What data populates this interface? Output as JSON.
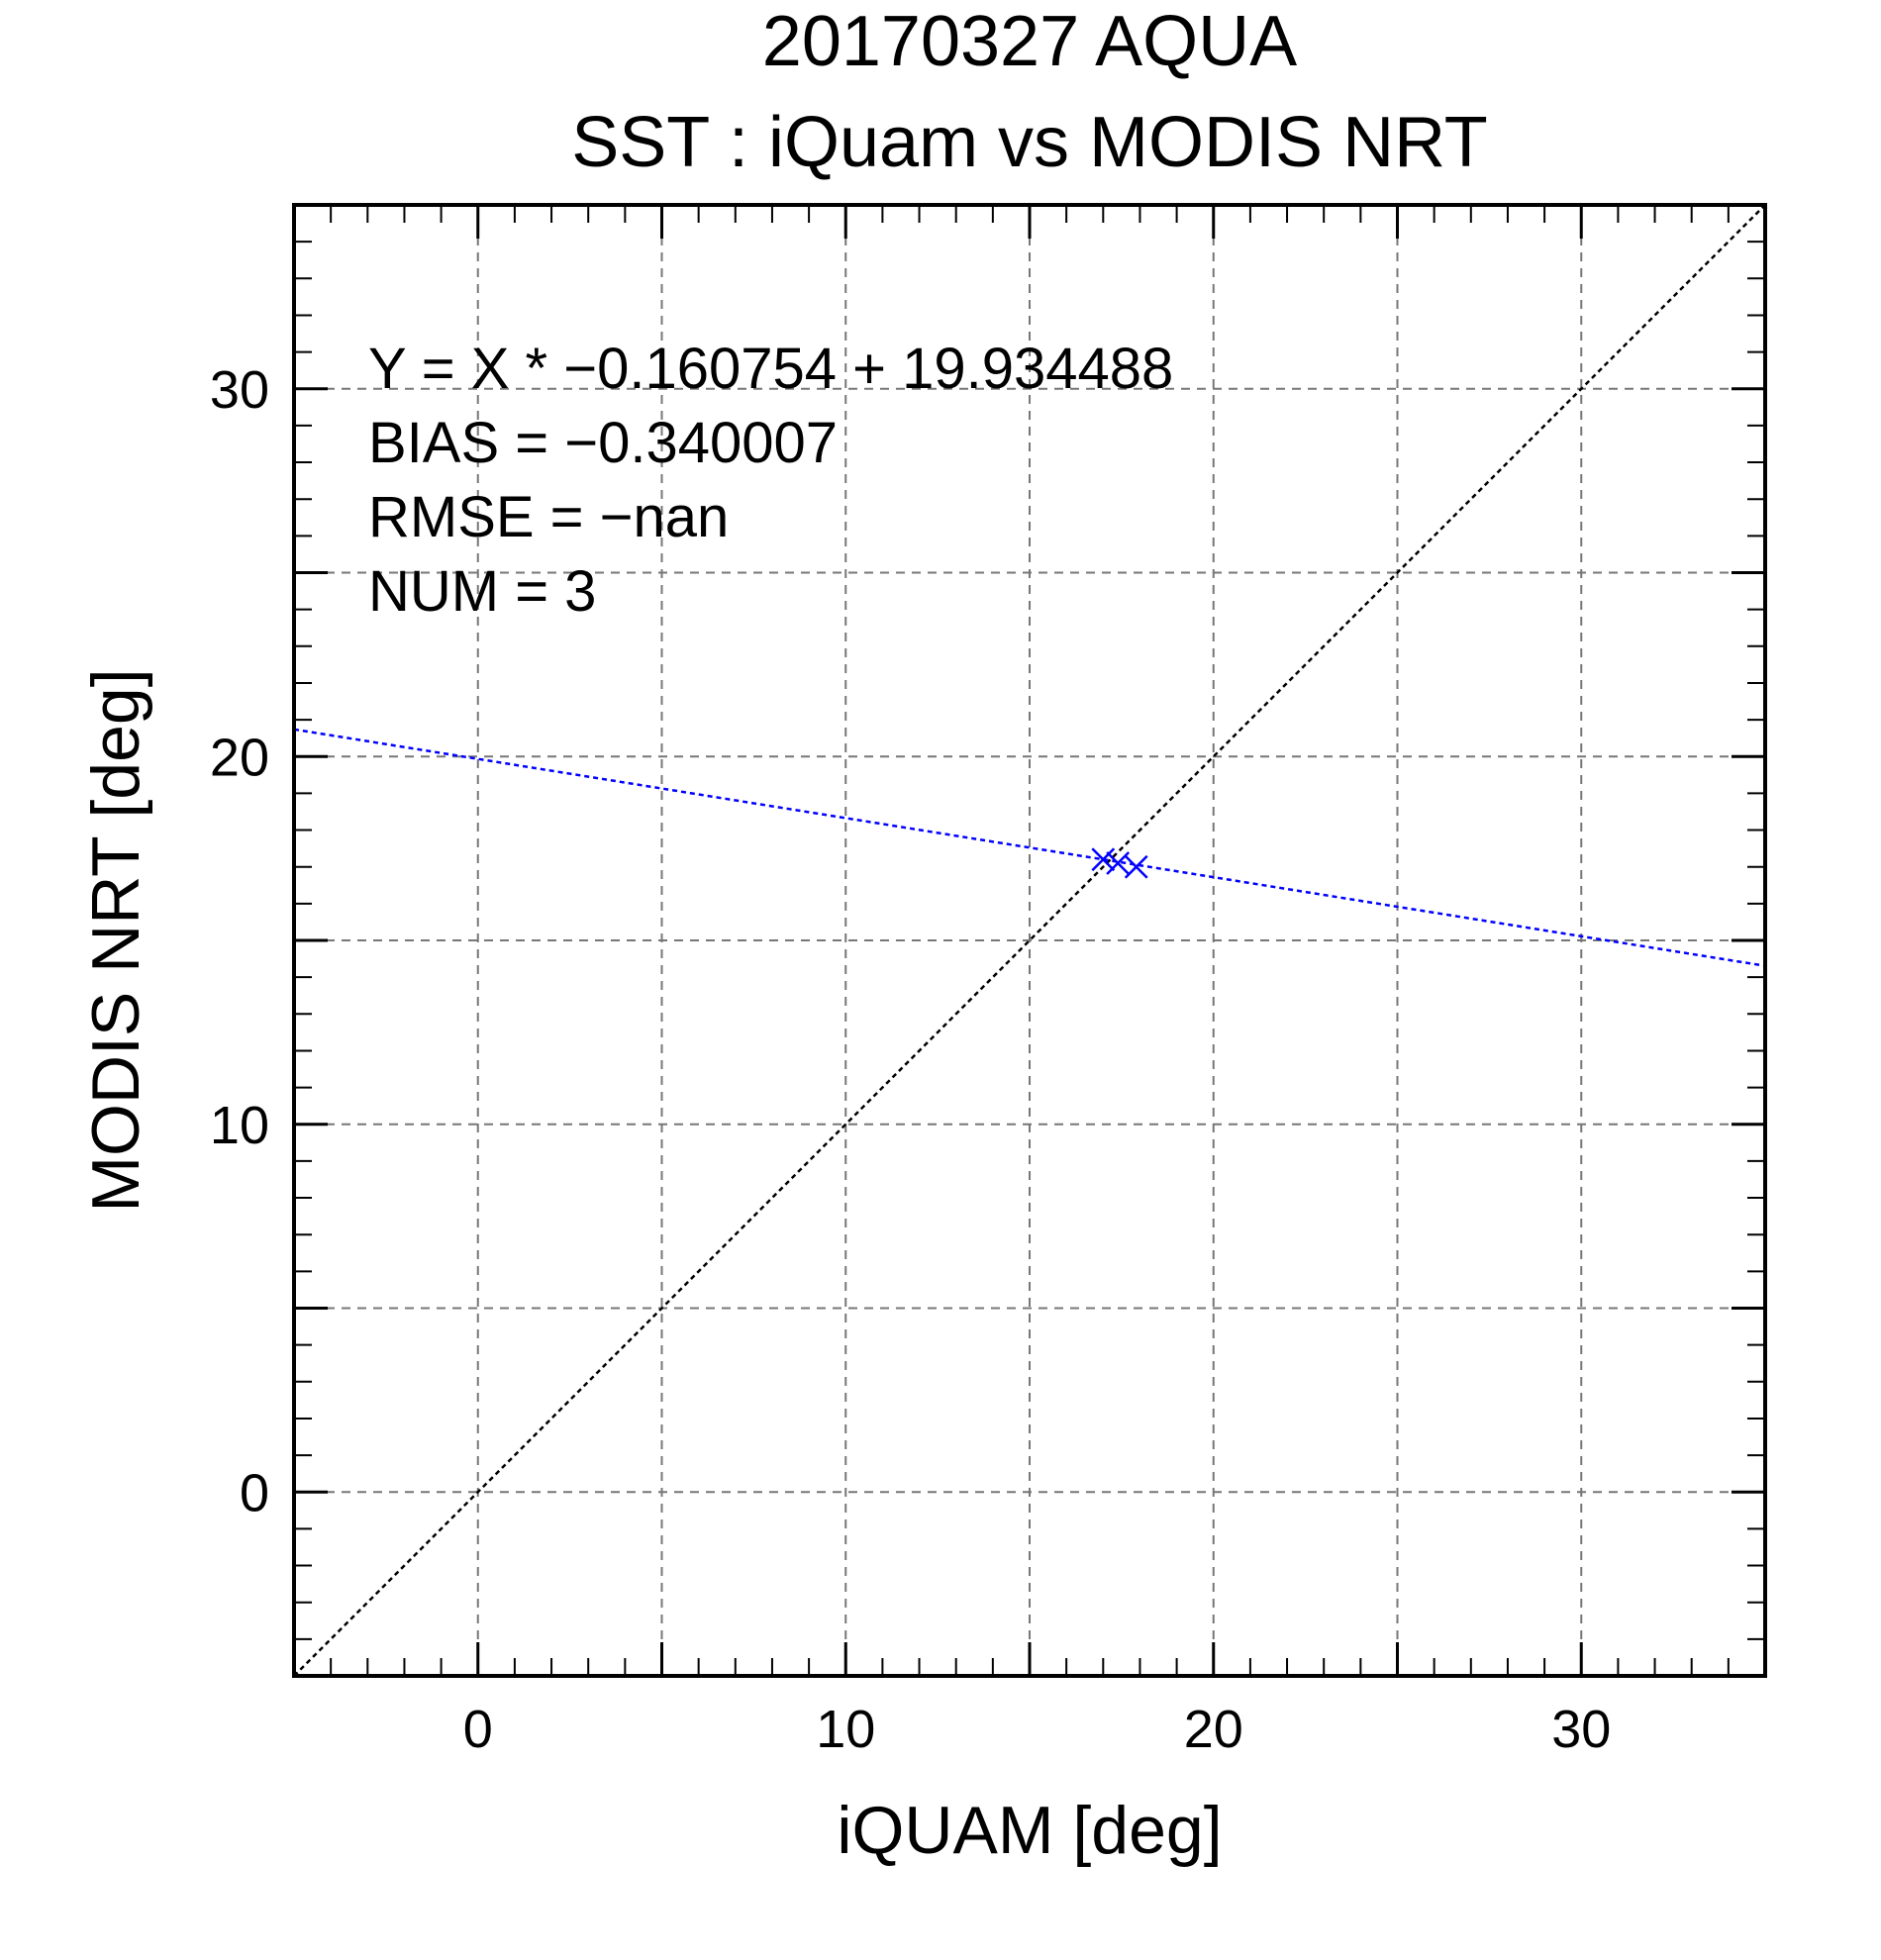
{
  "chart_data": {
    "type": "scatter",
    "title": "20170327 AQUA",
    "subtitle": "SST : iQuam vs MODIS NRT",
    "xlabel": "iQUAM [deg]",
    "ylabel": "MODIS NRT [deg]",
    "xlim": [
      -5,
      35
    ],
    "ylim": [
      -5,
      35
    ],
    "x_ticks": [
      0,
      10,
      20,
      30
    ],
    "y_ticks": [
      0,
      10,
      20,
      30
    ],
    "x_tick_labels": [
      "0",
      "10",
      "20",
      "30"
    ],
    "y_tick_labels": [
      "0",
      "10",
      "20",
      "30"
    ],
    "grid": true,
    "grid_step": 5,
    "minor_tick_step": 1,
    "series": [
      {
        "marker": "x",
        "color": "#0000ff",
        "x": [
          17.0,
          17.4,
          17.9
        ],
        "y": [
          17.2,
          17.1,
          17.0
        ]
      }
    ],
    "fit_line": {
      "slope": -0.160754,
      "intercept": 19.934488,
      "color": "#0000ff",
      "style": "dotted"
    },
    "reference_line": {
      "slope": 1,
      "intercept": 0,
      "color": "#000000",
      "style": "dotted"
    },
    "annotations": [
      "Y = X * −0.160754 + 19.934488",
      "BIAS = −0.340007",
      "RMSE = −nan",
      "NUM = 3"
    ]
  }
}
